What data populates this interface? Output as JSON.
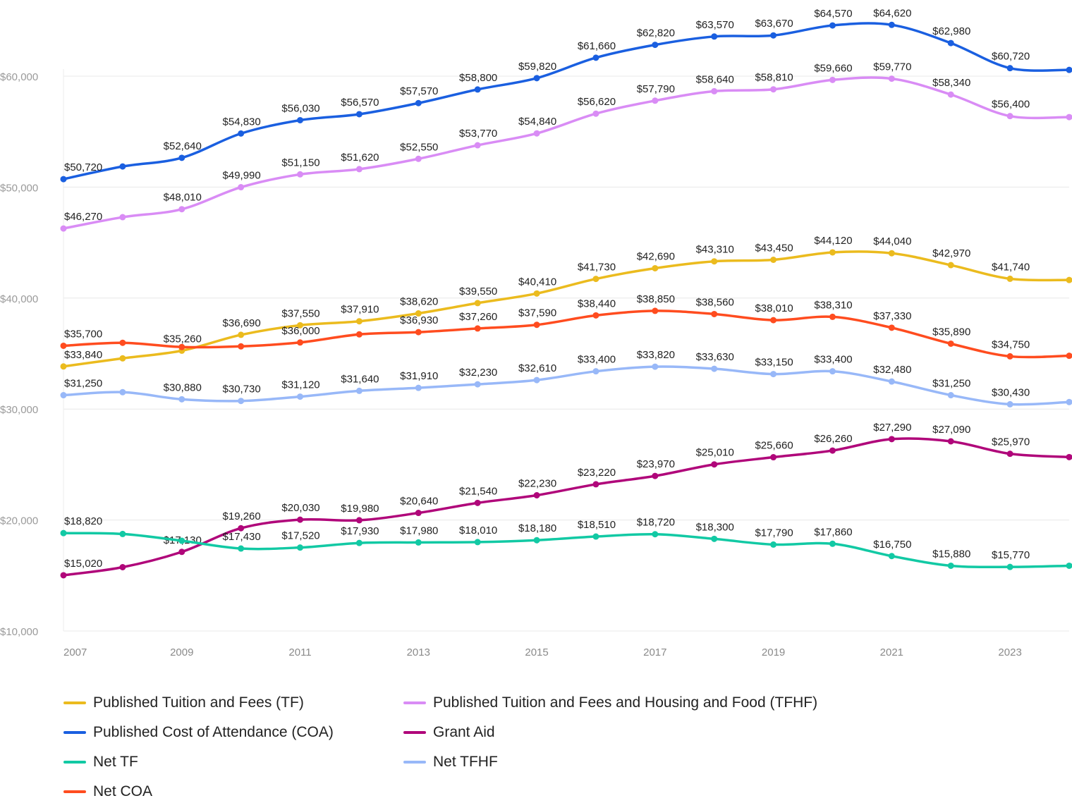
{
  "chart_data": {
    "type": "line",
    "x": [
      2007,
      2008,
      2009,
      2010,
      2011,
      2012,
      2013,
      2014,
      2015,
      2016,
      2017,
      2018,
      2019,
      2020,
      2021,
      2022,
      2023,
      2024
    ],
    "x_tick_labels": [
      "2007",
      "2009",
      "2011",
      "2013",
      "2015",
      "2017",
      "2019",
      "2021",
      "2023"
    ],
    "y_tick_labels": [
      "$10,000",
      "$20,000",
      "$30,000",
      "$40,000",
      "$50,000",
      "$60,000"
    ],
    "ylim": [
      10000,
      60000
    ],
    "grid": "horizontal",
    "legend_position": "bottom",
    "series": [
      {
        "name": "Published Tuition and Fees (TF)",
        "color": "#ebbb1e",
        "values": [
          33840,
          34570,
          35260,
          36690,
          37550,
          37910,
          38620,
          39550,
          40410,
          41730,
          42690,
          43310,
          43450,
          44120,
          44040,
          42970,
          41740,
          41630
        ],
        "labels": [
          "$33,840",
          null,
          "$35,260",
          "$36,690",
          "$37,550",
          "$37,910",
          "$38,620",
          "$39,550",
          "$40,410",
          "$41,730",
          "$42,690",
          "$43,310",
          "$43,450",
          "$44,120",
          "$44,040",
          "$42,970",
          "$41,740",
          null
        ]
      },
      {
        "name": "Published Tuition and Fees and Housing and Food (TFHF)",
        "color": "#d98cf5",
        "values": [
          46270,
          47290,
          48010,
          49990,
          51150,
          51620,
          52550,
          53770,
          54840,
          56620,
          57790,
          58640,
          58810,
          59660,
          59770,
          58340,
          56400,
          56310
        ],
        "labels": [
          "$46,270",
          null,
          "$48,010",
          "$49,990",
          "$51,150",
          "$51,620",
          "$52,550",
          "$53,770",
          "$54,840",
          "$56,620",
          "$57,790",
          "$58,640",
          "$58,810",
          "$59,660",
          "$59,770",
          "$58,340",
          "$56,400",
          null
        ]
      },
      {
        "name": "Published Cost of Attendance (COA)",
        "color": "#1a5fe0",
        "values": [
          50720,
          51860,
          52640,
          54830,
          56030,
          56570,
          57570,
          58800,
          59820,
          61660,
          62820,
          63570,
          63670,
          64570,
          64620,
          62980,
          60720,
          60560
        ],
        "labels": [
          "$50,720",
          null,
          "$52,640",
          "$54,830",
          "$56,030",
          "$56,570",
          "$57,570",
          "$58,800",
          "$59,820",
          "$61,660",
          "$62,820",
          "$63,570",
          "$63,670",
          "$64,570",
          "$64,620",
          "$62,980",
          "$60,720",
          null
        ]
      },
      {
        "name": "Grant Aid",
        "color": "#b0067a",
        "values": [
          15020,
          15750,
          17130,
          19260,
          20030,
          19980,
          20640,
          21540,
          22230,
          23220,
          23970,
          25010,
          25660,
          26260,
          27290,
          27090,
          25970,
          25670
        ],
        "labels": [
          "$15,020",
          null,
          "$17,130",
          "$19,260",
          "$20,030",
          "$19,980",
          "$20,640",
          "$21,540",
          "$22,230",
          "$23,220",
          "$23,970",
          "$25,010",
          "$25,660",
          "$26,260",
          "$27,290",
          "$27,090",
          "$25,970",
          null
        ]
      },
      {
        "name": "Net TF",
        "color": "#12c9a4",
        "values": [
          18820,
          18740,
          18130,
          17430,
          17520,
          17930,
          17980,
          18010,
          18180,
          18510,
          18720,
          18300,
          17790,
          17860,
          16750,
          15880,
          15770,
          15880
        ],
        "labels": [
          "$18,820",
          null,
          null,
          "$17,430",
          "$17,520",
          "$17,930",
          "$17,980",
          "$18,010",
          "$18,180",
          "$18,510",
          "$18,720",
          "$18,300",
          "$17,790",
          "$17,860",
          "$16,750",
          "$15,880",
          "$15,770",
          null
        ]
      },
      {
        "name": "Net TFHF",
        "color": "#98b8f8",
        "values": [
          31250,
          31520,
          30880,
          30730,
          31120,
          31640,
          31910,
          32230,
          32610,
          33400,
          33820,
          33630,
          33150,
          33400,
          32480,
          31250,
          30430,
          30630
        ],
        "labels": [
          "$31,250",
          null,
          "$30,880",
          "$30,730",
          "$31,120",
          "$31,640",
          "$31,910",
          "$32,230",
          "$32,610",
          "$33,400",
          "$33,820",
          "$33,630",
          "$33,150",
          "$33,400",
          "$32,480",
          "$31,250",
          "$30,430",
          null
        ]
      },
      {
        "name": "Net COA",
        "color": "#ff4c1f",
        "values": [
          35700,
          35970,
          35590,
          35650,
          36000,
          36730,
          36930,
          37260,
          37590,
          38440,
          38850,
          38560,
          38010,
          38310,
          37330,
          35890,
          34750,
          34800
        ],
        "labels": [
          "$35,700",
          null,
          null,
          null,
          "$36,000",
          null,
          "$36,930",
          "$37,260",
          "$37,590",
          "$38,440",
          "$38,850",
          "$38,560",
          "$38,010",
          "$38,310",
          "$37,330",
          "$35,890",
          "$34,750",
          null
        ]
      }
    ]
  }
}
